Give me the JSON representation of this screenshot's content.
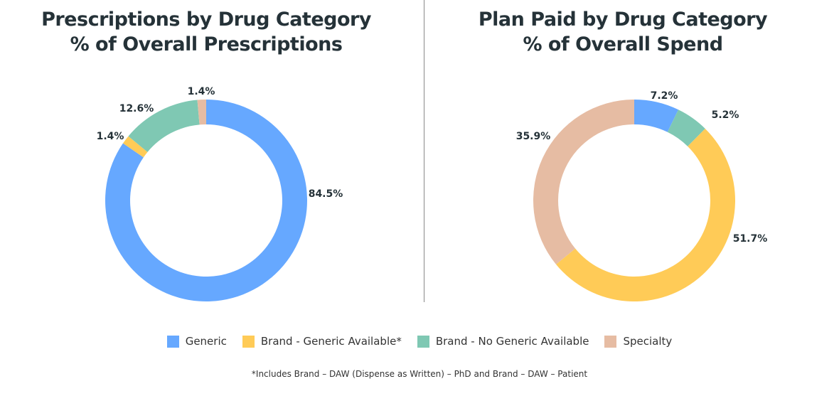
{
  "colors": {
    "Generic": "#66a8ff",
    "Brand - Generic Available*": "#ffcb57",
    "Brand - No Generic Available": "#7fc8b3",
    "Specialty": "#e6bca3"
  },
  "chart_data": [
    {
      "type": "pie",
      "donut": true,
      "title": "Prescriptions by Drug Category",
      "subtitle": "% of Overall Prescriptions",
      "slices": [
        {
          "category": "Generic",
          "value": 84.5,
          "label": "84.5%"
        },
        {
          "category": "Brand - Generic Available*",
          "value": 1.4,
          "label": "1.4%"
        },
        {
          "category": "Brand - No Generic Available",
          "value": 12.6,
          "label": "12.6%"
        },
        {
          "category": "Specialty",
          "value": 1.4,
          "label": "1.4%"
        }
      ]
    },
    {
      "type": "pie",
      "donut": true,
      "title": "Plan Paid by Drug Category",
      "subtitle": "% of Overall Spend",
      "slices": [
        {
          "category": "Generic",
          "value": 7.2,
          "label": "7.2%"
        },
        {
          "category": "Brand - No Generic Available",
          "value": 5.2,
          "label": "5.2%"
        },
        {
          "category": "Brand - Generic Available*",
          "value": 51.7,
          "label": "51.7%"
        },
        {
          "category": "Specialty",
          "value": 35.9,
          "label": "35.9%"
        }
      ]
    }
  ],
  "legend": [
    "Generic",
    "Brand - Generic Available*",
    "Brand - No Generic Available",
    "Specialty"
  ],
  "legend_position": "bottom",
  "footnote": "*Includes Brand – DAW (Dispense as Written) – PhD and Brand – DAW – Patient"
}
